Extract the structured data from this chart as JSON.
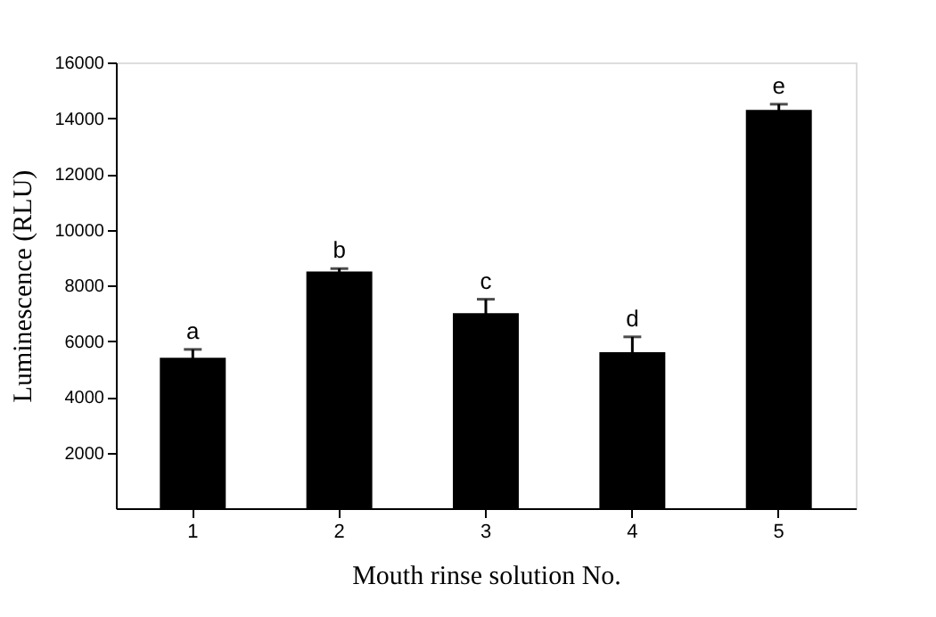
{
  "chart_data": {
    "type": "bar",
    "xlabel": "Mouth rinse solution No.",
    "ylabel": "Luminescence (RLU)",
    "categories": [
      "1",
      "2",
      "3",
      "4",
      "5"
    ],
    "values": [
      5400,
      8500,
      7000,
      5600,
      14300
    ],
    "errors": [
      300,
      100,
      500,
      550,
      200
    ],
    "colors": [
      "#000000",
      "#000000",
      "#000000",
      "#000000",
      "#000000"
    ],
    "ylim": [
      0,
      16000
    ],
    "yticks": [
      2000,
      4000,
      6000,
      8000,
      10000,
      12000,
      14000,
      16000
    ],
    "grid": false,
    "annotations": [
      {
        "text": "a",
        "x": "1",
        "y": 5700
      },
      {
        "text": "b",
        "x": "2",
        "y": 8600
      },
      {
        "text": "c",
        "x": "3",
        "y": 7500
      },
      {
        "text": "d",
        "x": "4",
        "y": 6150
      },
      {
        "text": "e",
        "x": "5",
        "y": 14500
      }
    ]
  }
}
